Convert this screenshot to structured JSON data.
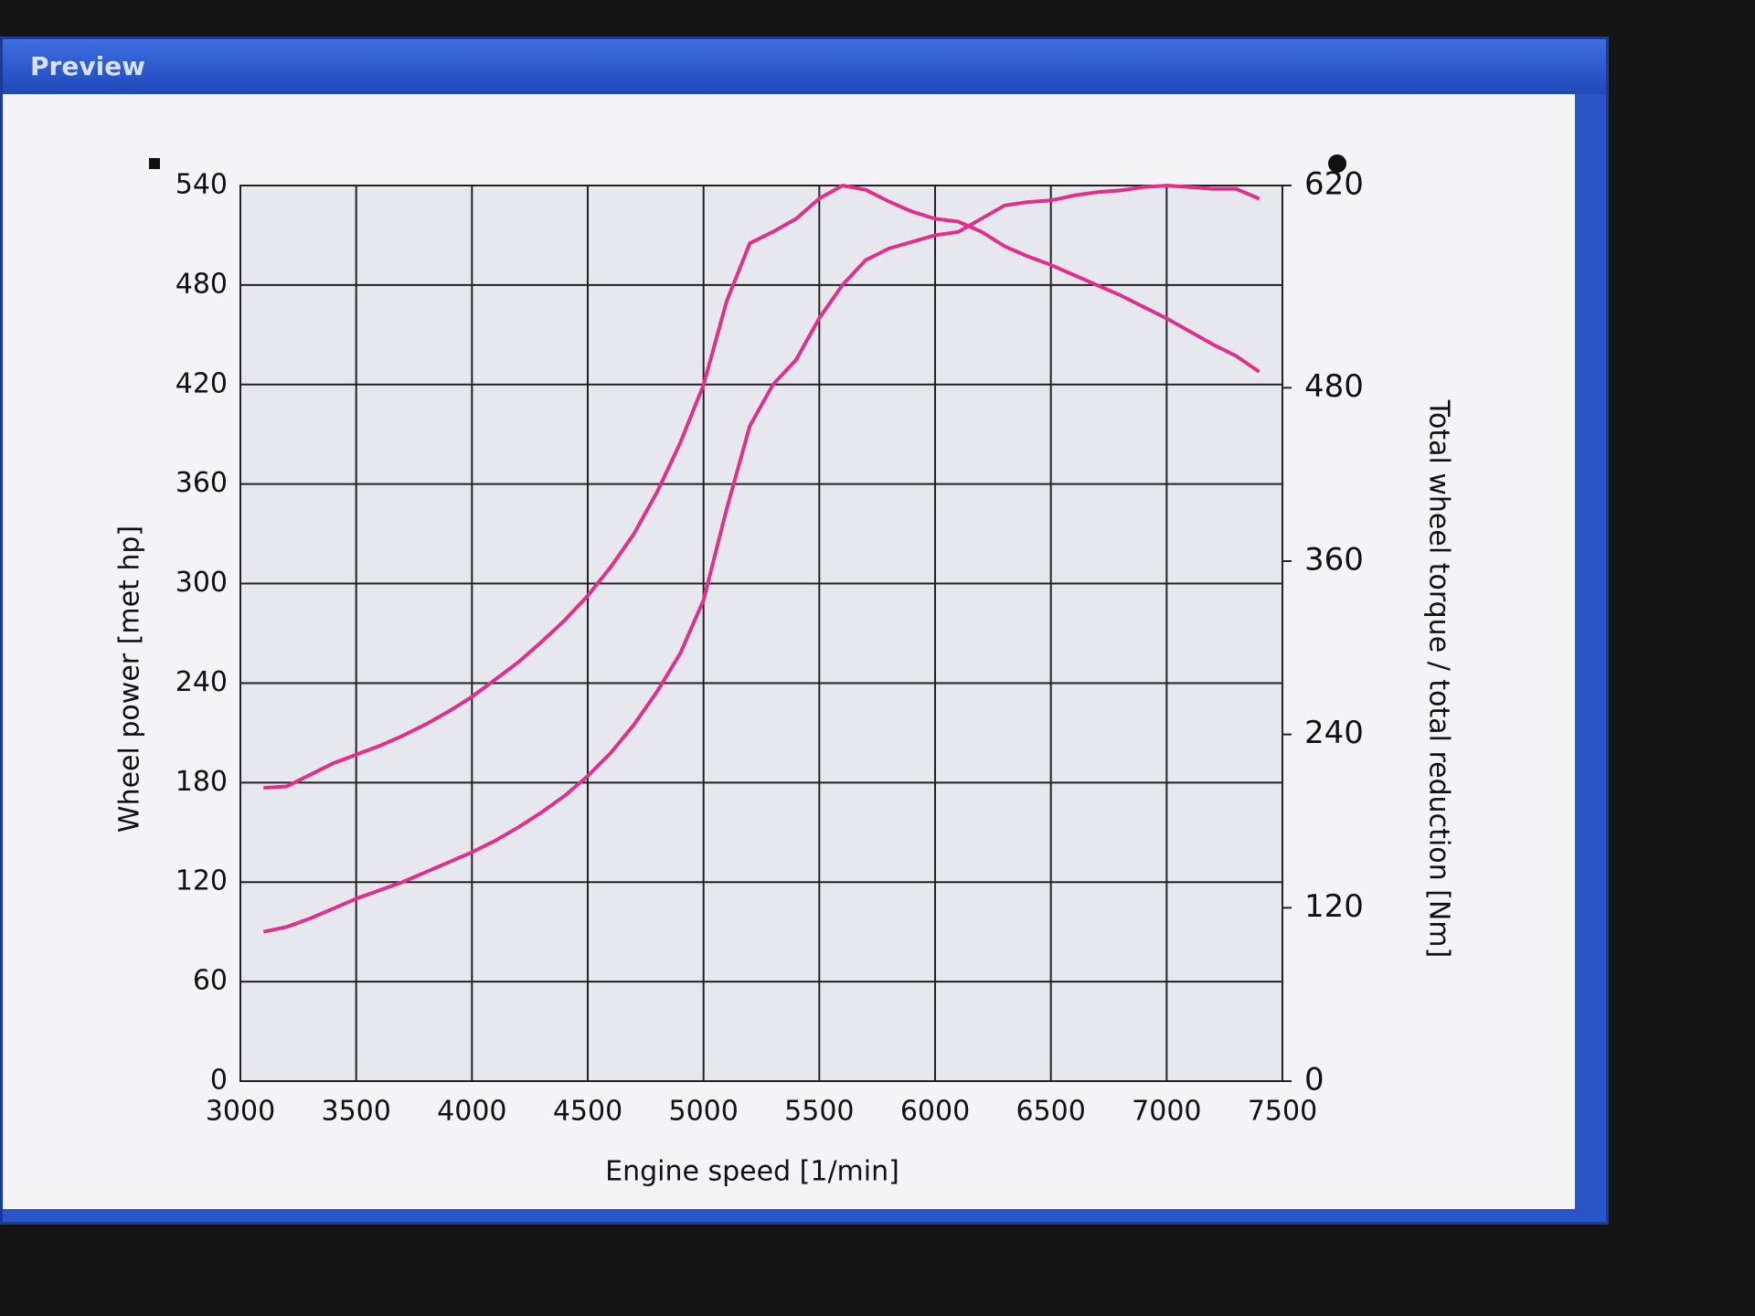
{
  "window": {
    "title": "Preview"
  },
  "chart_data": {
    "type": "line",
    "x_label": "Engine speed [1/min]",
    "y_label": "Wheel power [met hp]",
    "y2_label": "Total wheel torque / total reduction [Nm]",
    "x": [
      3100,
      3200,
      3300,
      3400,
      3500,
      3600,
      3700,
      3800,
      3900,
      4000,
      4100,
      4200,
      4300,
      4400,
      4500,
      4600,
      4700,
      4800,
      4900,
      5000,
      5100,
      5200,
      5300,
      5400,
      5500,
      5600,
      5700,
      5800,
      5900,
      6000,
      6100,
      6200,
      6300,
      6400,
      6500,
      6600,
      6700,
      6800,
      6900,
      7000,
      7100,
      7200,
      7300,
      7400
    ],
    "xlim": [
      3000,
      7500
    ],
    "xticks": [
      3000,
      3500,
      4000,
      4500,
      5000,
      5500,
      6000,
      6500,
      7000,
      7500
    ],
    "ylim": [
      0,
      540
    ],
    "yticks": [
      0,
      60,
      120,
      180,
      240,
      300,
      360,
      420,
      480,
      540
    ],
    "y2lim": [
      0,
      620
    ],
    "y2ticks": [
      0,
      120,
      240,
      360,
      480,
      620
    ],
    "grid": true,
    "series": [
      {
        "color": "#e0308c",
        "axis": "y",
        "values": [
          90,
          93,
          98,
          104,
          110,
          115,
          120,
          126,
          132,
          138,
          145,
          153,
          162,
          172,
          184,
          198,
          215,
          235,
          258,
          290,
          345,
          395,
          420,
          435,
          460,
          480,
          495,
          502,
          506,
          510,
          512,
          520,
          528,
          530,
          531,
          534,
          536,
          537,
          539,
          540,
          539,
          538,
          538,
          532
        ]
      },
      {
        "color": "#e0308c",
        "axis": "y2",
        "values": [
          203,
          204,
          212,
          220,
          226,
          232,
          239,
          247,
          256,
          266,
          278,
          290,
          304,
          319,
          336,
          356,
          379,
          408,
          442,
          482,
          540,
          580,
          588,
          597,
          611,
          620,
          617,
          609,
          602,
          597,
          595,
          588,
          578,
          571,
          565,
          558,
          551,
          544,
          536,
          528,
          519,
          510,
          502,
          491
        ]
      }
    ]
  }
}
